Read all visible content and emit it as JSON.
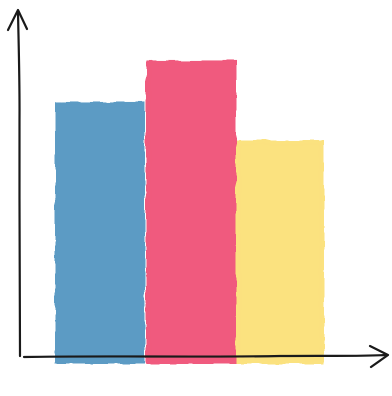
{
  "chart_data": {
    "type": "bar",
    "categories": [
      "",
      "",
      ""
    ],
    "values": [
      74,
      86,
      63
    ],
    "colors": [
      "#5b9bc4",
      "#f05a7e",
      "#fbe27f"
    ],
    "title": "",
    "xlabel": "",
    "ylabel": "",
    "ylim": [
      0,
      100
    ],
    "grid": false,
    "legend": "none",
    "style": "hand-drawn"
  }
}
